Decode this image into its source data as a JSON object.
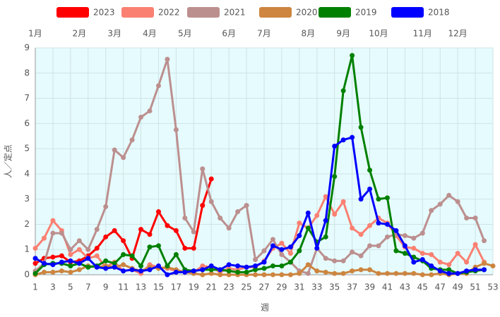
{
  "chart_data": {
    "type": "line",
    "x_label": "週",
    "y_label": "人／定点",
    "x": [
      1,
      2,
      3,
      4,
      5,
      6,
      7,
      8,
      9,
      10,
      11,
      12,
      13,
      14,
      15,
      16,
      17,
      18,
      19,
      20,
      21,
      22,
      23,
      24,
      25,
      26,
      27,
      28,
      29,
      30,
      31,
      32,
      33,
      34,
      35,
      36,
      37,
      38,
      39,
      40,
      41,
      42,
      43,
      44,
      45,
      46,
      47,
      48,
      49,
      50,
      51,
      52,
      53
    ],
    "xlim": [
      1,
      53
    ],
    "xticks": [
      1,
      3,
      5,
      7,
      9,
      11,
      13,
      15,
      17,
      19,
      21,
      23,
      25,
      27,
      29,
      31,
      33,
      35,
      37,
      39,
      41,
      43,
      45,
      47,
      49,
      51,
      53
    ],
    "ylim": [
      0,
      9
    ],
    "yticks": [
      0,
      1,
      2,
      3,
      4,
      5,
      6,
      7,
      8,
      9
    ],
    "x2ticks": [
      {
        "value": 1,
        "label": "1月"
      },
      {
        "value": 6,
        "label": "2月"
      },
      {
        "value": 10,
        "label": "3月"
      },
      {
        "value": 14,
        "label": "4月"
      },
      {
        "value": 18,
        "label": "5月"
      },
      {
        "value": 23,
        "label": "6月"
      },
      {
        "value": 27,
        "label": "7月"
      },
      {
        "value": 32,
        "label": "8月"
      },
      {
        "value": 36,
        "label": "9月"
      },
      {
        "value": 40,
        "label": "10月"
      },
      {
        "value": 45,
        "label": "11月"
      },
      {
        "value": 49,
        "label": "12月"
      }
    ],
    "grid": true,
    "legend": "top",
    "background": "#e6fbfd",
    "series": [
      {
        "name": "2023",
        "color": "#ff0000",
        "values": [
          0.45,
          0.65,
          0.7,
          0.75,
          0.5,
          0.55,
          0.75,
          1.05,
          1.5,
          1.75,
          1.35,
          0.65,
          1.8,
          1.6,
          2.5,
          1.95,
          1.75,
          1.05,
          1.05,
          2.75,
          3.8,
          null,
          null,
          null,
          null,
          null,
          null,
          null,
          null,
          null,
          null,
          null,
          null,
          null,
          null,
          null,
          null,
          null,
          null,
          null,
          null,
          null,
          null,
          null,
          null,
          null,
          null,
          null,
          null,
          null,
          null,
          null,
          null
        ]
      },
      {
        "name": "2022",
        "color": "#fa8072",
        "values": [
          1.05,
          1.45,
          2.15,
          1.75,
          0.8,
          1.0,
          0.65,
          0.75,
          0.3,
          0.5,
          0.15,
          0.2,
          0.05,
          0.4,
          0.3,
          0.25,
          0.15,
          0.1,
          0.1,
          0.35,
          0.3,
          0.1,
          0.25,
          0.2,
          0.3,
          0.3,
          0.55,
          1.05,
          1.25,
          0.85,
          2.05,
          1.85,
          2.35,
          3.1,
          2.4,
          2.9,
          1.85,
          1.6,
          1.95,
          2.25,
          2.05,
          1.55,
          1.1,
          1.05,
          0.85,
          0.8,
          0.5,
          0.4,
          0.85,
          0.5,
          1.2,
          0.5,
          null
        ]
      },
      {
        "name": "2021",
        "color": "#bc8f8f",
        "values": [
          0.15,
          0.45,
          1.65,
          1.65,
          1.0,
          1.35,
          1.0,
          1.8,
          2.7,
          4.95,
          4.65,
          5.35,
          6.25,
          6.5,
          7.5,
          8.55,
          5.75,
          2.25,
          1.7,
          4.2,
          2.9,
          2.25,
          1.85,
          2.5,
          2.75,
          0.6,
          0.95,
          1.4,
          0.8,
          0.5,
          0.15,
          0.05,
          1.05,
          0.65,
          0.55,
          0.55,
          0.9,
          0.75,
          1.15,
          1.15,
          1.5,
          1.6,
          1.55,
          1.45,
          1.65,
          2.55,
          2.8,
          3.15,
          2.9,
          2.25,
          2.25,
          1.35,
          null
        ]
      },
      {
        "name": "2020",
        "color": "#cd853f",
        "values": [
          0.0,
          0.1,
          0.1,
          0.15,
          0.1,
          0.2,
          0.35,
          0.3,
          0.35,
          0.3,
          0.4,
          0.25,
          0.15,
          0.3,
          0.25,
          0.3,
          0.2,
          0.1,
          0.05,
          0.0,
          0.05,
          0.0,
          0.0,
          0.0,
          0.0,
          0.0,
          0.0,
          0.0,
          0.0,
          0.0,
          0.05,
          0.4,
          0.15,
          0.1,
          0.05,
          0.05,
          0.15,
          0.2,
          0.2,
          0.05,
          0.05,
          0.05,
          0.05,
          0.05,
          0.0,
          0.0,
          0.05,
          0.0,
          0.05,
          0.05,
          0.3,
          0.45,
          0.35
        ]
      },
      {
        "name": "2019",
        "color": "#008000",
        "values": [
          0.05,
          0.4,
          0.45,
          0.45,
          0.35,
          0.45,
          0.3,
          0.35,
          0.55,
          0.45,
          0.8,
          0.75,
          0.35,
          1.1,
          1.15,
          0.35,
          0.8,
          0.2,
          0.15,
          0.2,
          0.2,
          0.2,
          0.15,
          0.1,
          0.1,
          0.2,
          0.25,
          0.35,
          0.35,
          0.5,
          0.95,
          1.85,
          1.3,
          1.5,
          3.9,
          7.3,
          8.7,
          5.85,
          4.15,
          3.0,
          3.05,
          0.95,
          0.85,
          0.7,
          0.55,
          0.25,
          0.2,
          0.2,
          0.05,
          0.1,
          0.15,
          0.2,
          null
        ]
      },
      {
        "name": "2018",
        "color": "#0000ff",
        "values": [
          0.65,
          0.45,
          0.4,
          0.5,
          0.55,
          0.45,
          0.65,
          0.3,
          0.25,
          0.3,
          0.15,
          0.2,
          0.15,
          0.2,
          0.35,
          0.0,
          0.1,
          0.1,
          0.15,
          0.2,
          0.35,
          0.2,
          0.4,
          0.35,
          0.3,
          0.35,
          0.5,
          1.15,
          1.0,
          1.1,
          1.55,
          2.45,
          1.05,
          2.15,
          5.1,
          5.35,
          5.45,
          3.0,
          3.4,
          2.05,
          2.0,
          1.75,
          1.15,
          0.5,
          0.6,
          0.35,
          0.15,
          0.05,
          0.05,
          0.15,
          0.2,
          0.2,
          null
        ]
      }
    ]
  }
}
